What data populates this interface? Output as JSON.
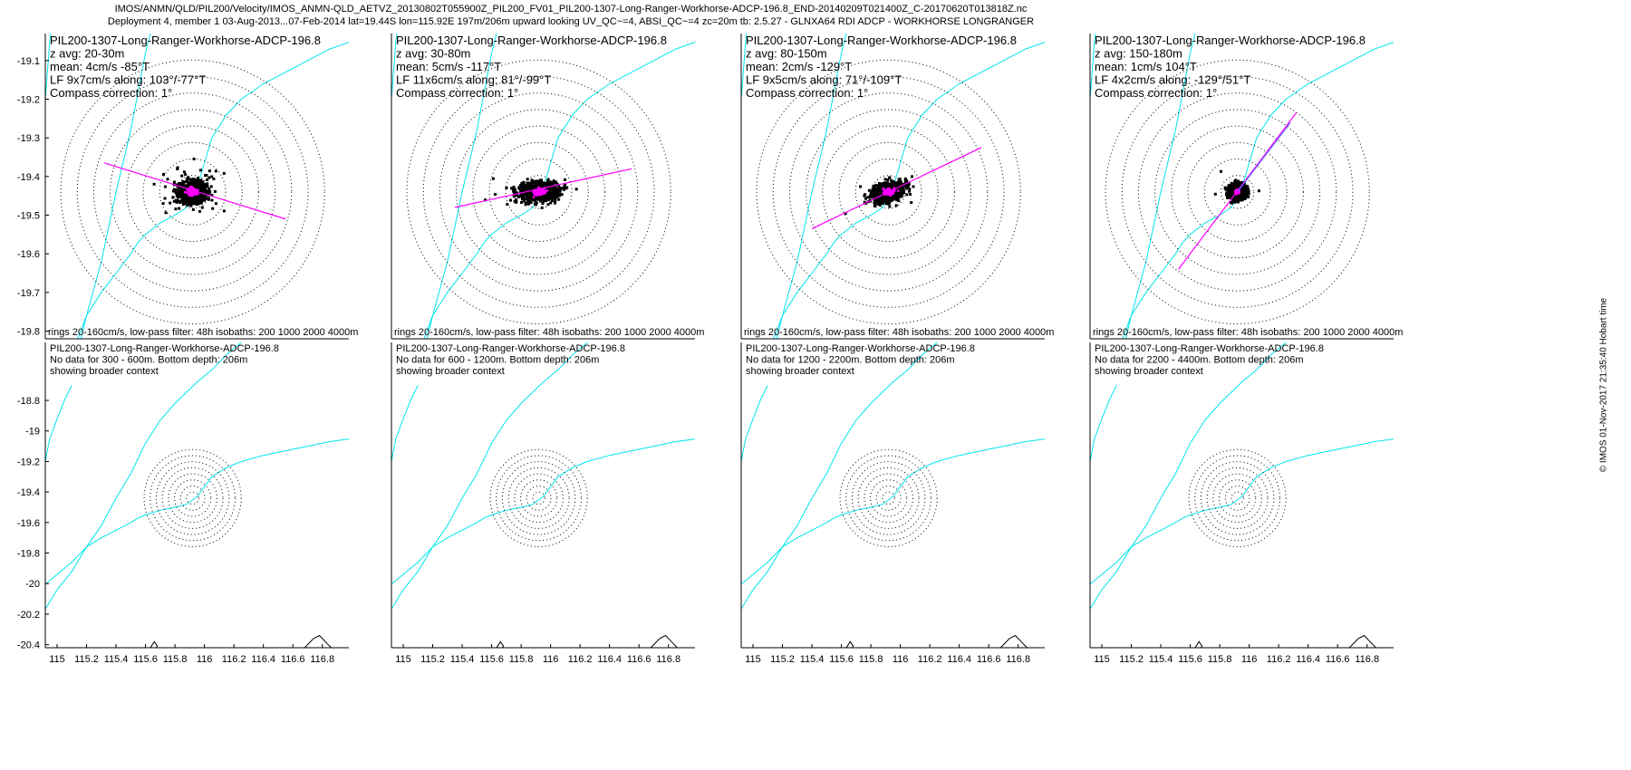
{
  "figure": {
    "title_line1": "IMOS/ANMN/QLD/PIL200/Velocity/IMOS_ANMN-QLD_AETVZ_20130802T055900Z_PIL200_FV01_PIL200-1307-Long-Ranger-Workhorse-ADCP-196.8_END-20140209T021400Z_C-20170620T013818Z.nc",
    "title_line2": "Deployment 4, member 1 03-Aug-2013...07-Feb-2014 lat=19.44S lon=115.92E 197m/206m upward looking UV_QC~=4, ABSI_QC~=4 zc=20m tb: 2.5.27 - GLNXA64 RDI ADCP - WORKHORSE LONGRANGER",
    "credit": "© IMOS 01-Nov-2017 21:35:40 Hobart time"
  },
  "colors": {
    "scatter": "#000000",
    "lowpass": "#ff00ff",
    "isobath": "#00e5ee",
    "axis_line": "#ff00ff",
    "mean_line": "#6060ff",
    "rings": "#000000",
    "coast": "#000000"
  },
  "chart_data": [
    {
      "type": "scatter",
      "panel": "top-1",
      "title": "PIL200-1307-Long-Ranger-Workhorse-ADCP-196.8",
      "text_lines": [
        "z avg: 20-30m",
        "mean: 4cm/s -85°T",
        "LF 9x7cm/s along: 103°/-77°T",
        "Compass correction: 1°"
      ],
      "footer": "rings 20-160cm/s, low-pass filter: 48h isobaths: 200 1000 2000 4000m",
      "ylim": [
        -19.82,
        -19.03
      ],
      "ytick_values": [
        -19.8,
        -19.7,
        -19.6,
        -19.5,
        -19.4,
        -19.3,
        -19.2,
        -19.1
      ],
      "ytick_labels": [
        "-19.8",
        "-19.7",
        "-19.6",
        "-19.5",
        "-19.4",
        "-19.3",
        "-19.2",
        "-19.1"
      ],
      "center": [
        115.92,
        -19.44
      ],
      "rings_cm_s": [
        20,
        40,
        60,
        80,
        100,
        120,
        140,
        160
      ],
      "cloud": {
        "rx": 0.095,
        "ry": 0.072,
        "angle_deg": -12,
        "outliers": 60
      },
      "lowpass_cloud": {
        "rx": 0.028,
        "ry": 0.022
      },
      "principal_axis": {
        "x": [
          115.32,
          116.55
        ],
        "y": [
          -19.365,
          -19.51
        ],
        "color": "lowpass"
      },
      "grid": false
    },
    {
      "type": "scatter",
      "panel": "top-2",
      "title": "PIL200-1307-Long-Ranger-Workhorse-ADCP-196.8",
      "text_lines": [
        "z avg: 30-80m",
        "mean: 5cm/s -117°T",
        "LF 11x6cm/s along: 81°/-99°T",
        "Compass correction: 1°"
      ],
      "footer": "rings 20-160cm/s, low-pass filter: 48h isobaths: 200 1000 2000 4000m",
      "ylim": [
        -19.82,
        -19.03
      ],
      "center": [
        115.92,
        -19.44
      ],
      "rings_cm_s": [
        20,
        40,
        60,
        80,
        100,
        120,
        140,
        160
      ],
      "cloud": {
        "rx": 0.13,
        "ry": 0.062,
        "angle_deg": -5,
        "outliers": 10
      },
      "lowpass_cloud": {
        "rx": 0.035,
        "ry": 0.02
      },
      "principal_axis": {
        "x": [
          115.35,
          116.55
        ],
        "y": [
          -19.48,
          -19.38
        ],
        "color": "lowpass"
      },
      "grid": false
    },
    {
      "type": "scatter",
      "panel": "top-3",
      "title": "PIL200-1307-Long-Ranger-Workhorse-ADCP-196.8",
      "text_lines": [
        "z avg: 80-150m",
        "mean: 2cm/s -129°T",
        "LF 9x5cm/s along: 71°/-109°T",
        "Compass correction: 1°"
      ],
      "footer": "rings 20-160cm/s, low-pass filter: 48h isobaths: 200 1000 2000 4000m",
      "ylim": [
        -19.82,
        -19.03
      ],
      "center": [
        115.92,
        -19.44
      ],
      "rings_cm_s": [
        20,
        40,
        60,
        80,
        100,
        120,
        140,
        160
      ],
      "cloud": {
        "rx": 0.115,
        "ry": 0.058,
        "angle_deg": -18,
        "outliers": 10
      },
      "lowpass_cloud": {
        "rx": 0.03,
        "ry": 0.018
      },
      "principal_axis": {
        "x": [
          115.4,
          116.55
        ],
        "y": [
          -19.535,
          -19.325
        ],
        "color": "lowpass"
      },
      "grid": false
    },
    {
      "type": "scatter",
      "panel": "top-4",
      "title": "PIL200-1307-Long-Ranger-Workhorse-ADCP-196.8",
      "text_lines": [
        "z avg: 150-180m",
        "mean: 1cm/s 104°T",
        "LF 4x2cm/s along: -129°/51°T",
        "Compass correction: 1°"
      ],
      "footer": "rings 20-160cm/s, low-pass filter: 48h isobaths: 200 1000 2000 4000m",
      "ylim": [
        -19.82,
        -19.03
      ],
      "center": [
        115.92,
        -19.44
      ],
      "rings_cm_s": [
        20,
        40,
        60,
        80,
        100,
        120,
        140,
        160
      ],
      "cloud": {
        "rx": 0.06,
        "ry": 0.05,
        "angle_deg": 0,
        "outliers": 15
      },
      "lowpass_cloud": {
        "rx": 0.012,
        "ry": 0.01
      },
      "principal_axis": {
        "x": [
          115.52,
          116.32
        ],
        "y": [
          -19.64,
          -19.235
        ],
        "color": "lowpass"
      },
      "mean_line": {
        "x": [
          115.92,
          116.28
        ],
        "y": [
          -19.44,
          -19.26
        ]
      },
      "grid": false
    },
    {
      "type": "scatter",
      "panel": "bottom-1",
      "title": "PIL200-1307-Long-Ranger-Workhorse-ADCP-196.8",
      "text_lines": [
        "No data for 300 - 600m. Bottom depth: 206m",
        "showing broader context"
      ],
      "ylim": [
        -20.42,
        -18.42
      ],
      "ytick_values": [
        -20.4,
        -20.2,
        -20,
        -19.8,
        -19.6,
        -19.4,
        -19.2,
        -19,
        -18.8
      ],
      "ytick_labels": [
        "-20.4",
        "-20.2",
        "-20",
        "-19.8",
        "-19.6",
        "-19.4",
        "-19.2",
        "-19",
        "-18.8"
      ],
      "xtick_values": [
        115,
        115.2,
        115.4,
        115.6,
        115.8,
        116,
        116.2,
        116.4,
        116.6,
        116.8
      ],
      "xtick_labels": [
        "115",
        "115.2",
        "115.4",
        "115.6",
        "115.8",
        "116",
        "116.2",
        "116.4",
        "116.6",
        "116.8"
      ],
      "center": [
        115.92,
        -19.44
      ],
      "rings_cm_s": [
        20,
        40,
        60,
        80,
        100,
        120,
        140,
        160
      ],
      "grid": false
    },
    {
      "type": "scatter",
      "panel": "bottom-2",
      "title": "PIL200-1307-Long-Ranger-Workhorse-ADCP-196.8",
      "text_lines": [
        "No data for 600 - 1200m. Bottom depth: 206m",
        "showing broader context"
      ],
      "ylim": [
        -20.42,
        -18.42
      ],
      "xtick_values": [
        115,
        115.2,
        115.4,
        115.6,
        115.8,
        116,
        116.2,
        116.4,
        116.6,
        116.8
      ],
      "xtick_labels": [
        "115",
        "115.2",
        "115.4",
        "115.6",
        "115.8",
        "116",
        "116.2",
        "116.4",
        "116.6",
        "116.8"
      ],
      "center": [
        115.92,
        -19.44
      ],
      "rings_cm_s": [
        20,
        40,
        60,
        80,
        100,
        120,
        140,
        160
      ],
      "grid": false
    },
    {
      "type": "scatter",
      "panel": "bottom-3",
      "title": "PIL200-1307-Long-Ranger-Workhorse-ADCP-196.8",
      "text_lines": [
        "No data for 1200 - 2200m. Bottom depth: 206m",
        "showing broader context"
      ],
      "ylim": [
        -20.42,
        -18.42
      ],
      "xtick_values": [
        115,
        115.2,
        115.4,
        115.6,
        115.8,
        116,
        116.2,
        116.4,
        116.6,
        116.8
      ],
      "xtick_labels": [
        "115",
        "115.2",
        "115.4",
        "115.6",
        "115.8",
        "116",
        "116.2",
        "116.4",
        "116.6",
        "116.8"
      ],
      "center": [
        115.92,
        -19.44
      ],
      "rings_cm_s": [
        20,
        40,
        60,
        80,
        100,
        120,
        140,
        160
      ],
      "grid": false
    },
    {
      "type": "scatter",
      "panel": "bottom-4",
      "title": "PIL200-1307-Long-Ranger-Workhorse-ADCP-196.8",
      "text_lines": [
        "No data for 2200 - 4400m. Bottom depth: 206m",
        "showing broader context"
      ],
      "ylim": [
        -20.42,
        -18.42
      ],
      "xtick_values": [
        115,
        115.2,
        115.4,
        115.6,
        115.8,
        116,
        116.2,
        116.4,
        116.6,
        116.8
      ],
      "xtick_labels": [
        "115",
        "115.2",
        "115.4",
        "115.6",
        "115.8",
        "116",
        "116.2",
        "116.4",
        "116.6",
        "116.8"
      ],
      "center": [
        115.92,
        -19.44
      ],
      "rings_cm_s": [
        20,
        40,
        60,
        80,
        100,
        120,
        140,
        160
      ],
      "grid": false
    }
  ],
  "isobaths": [
    {
      "x": [
        114.9,
        114.95,
        115.0,
        115.1,
        115.2,
        115.3,
        115.4,
        115.5,
        115.55,
        115.6,
        115.7,
        115.8,
        115.88,
        115.95,
        116.05,
        116.15,
        116.25,
        116.4,
        116.55,
        116.7,
        116.85,
        117.0
      ],
      "y": [
        -20.02,
        -19.98,
        -19.94,
        -19.86,
        -19.76,
        -19.7,
        -19.65,
        -19.6,
        -19.57,
        -19.55,
        -19.52,
        -19.5,
        -19.48,
        -19.43,
        -19.3,
        -19.24,
        -19.2,
        -19.16,
        -19.13,
        -19.1,
        -19.07,
        -19.05
      ]
    },
    {
      "x": [
        114.9,
        114.95,
        115.0,
        115.1,
        115.2,
        115.3,
        115.4,
        115.5,
        115.6,
        115.7,
        115.8,
        115.95,
        116.05,
        116.15,
        116.3,
        116.45,
        116.6
      ],
      "y": [
        -20.2,
        -20.12,
        -20.04,
        -19.92,
        -19.76,
        -19.62,
        -19.44,
        -19.28,
        -19.08,
        -18.93,
        -18.82,
        -18.68,
        -18.6,
        -18.5,
        -18.38,
        -18.28,
        -18.18
      ]
    },
    {
      "x": [
        114.9,
        114.92,
        114.95,
        115.0,
        115.05,
        115.1
      ],
      "y": [
        -19.32,
        -19.2,
        -19.05,
        -18.92,
        -18.8,
        -18.7
      ]
    }
  ],
  "coastline": [
    {
      "x": [
        115.62,
        115.64,
        115.66,
        115.68,
        115.66,
        115.63,
        115.62
      ],
      "y": [
        -20.44,
        -20.41,
        -20.38,
        -20.41,
        -20.44,
        -20.45,
        -20.44
      ]
    },
    {
      "x": [
        116.65,
        116.7,
        116.74,
        116.78,
        116.82,
        116.86,
        116.9
      ],
      "y": [
        -20.45,
        -20.4,
        -20.36,
        -20.34,
        -20.38,
        -20.42,
        -20.46
      ]
    }
  ]
}
